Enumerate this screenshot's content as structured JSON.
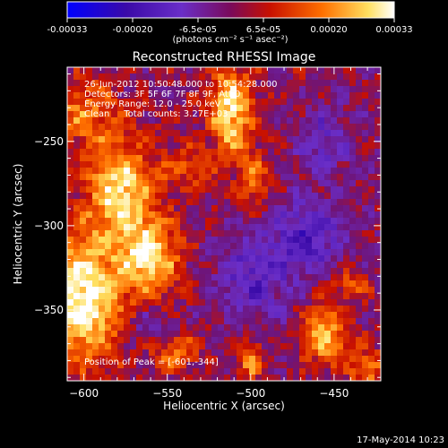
{
  "colorbar": {
    "tick_labels": [
      "-0.00033",
      "-0.00020",
      "-6.5e-05",
      "6.5e-05",
      "0.00020",
      "0.00033"
    ],
    "unit_label": "(photons cm⁻² s⁻¹ asec⁻²)",
    "colors": [
      "#0000ff",
      "#3a0aa8",
      "#6a2ec8",
      "#7a0a5a",
      "#c81000",
      "#ff7000",
      "#ffe060",
      "#ffffff"
    ]
  },
  "info": {
    "time_range": "26-Jun-2012 10:50:48.000 to 10:54:28.000",
    "detectors": "Detectors: 3F 5F 6F 7F 8F 9F, Att 0",
    "energy_range": "Energy Range: 12.0 - 25.0 keV",
    "clean_counts": "Clean     Total counts: 3.27E+03",
    "peak": "Position of Peak = [-601,-344]"
  },
  "footer": {
    "timestamp": "17-May-2014 10:23"
  },
  "chart_data": {
    "type": "heatmap",
    "title": "Reconstructed RHESSI Image",
    "xlabel": "Heliocentric X (arcsec)",
    "ylabel": "Heliocentric Y (arcsec)",
    "xlim": [
      -610,
      -422
    ],
    "ylim": [
      -392,
      -206
    ],
    "x_ticks": [
      -600,
      -550,
      -500,
      -450
    ],
    "x_tick_labels": [
      "−600",
      "−550",
      "−500",
      "−450"
    ],
    "y_ticks": [
      -250,
      -300,
      -350
    ],
    "y_tick_labels": [
      "−250",
      "−300",
      "−350"
    ],
    "color_range": [
      -0.00033,
      0.00033
    ],
    "peak_position": [
      -601,
      -344
    ],
    "sources": [
      {
        "x": -601,
        "y": -344,
        "sx": 16,
        "sy": 26,
        "amp": 1.0
      },
      {
        "x": -578,
        "y": -280,
        "sx": 14,
        "sy": 22,
        "amp": 0.85
      },
      {
        "x": -560,
        "y": -320,
        "sx": 12,
        "sy": 16,
        "amp": 0.8
      },
      {
        "x": -512,
        "y": -232,
        "sx": 9,
        "sy": 20,
        "amp": 0.85
      },
      {
        "x": -498,
        "y": -272,
        "sx": 6,
        "sy": 12,
        "amp": 0.45
      },
      {
        "x": -600,
        "y": -232,
        "sx": 14,
        "sy": 14,
        "amp": 0.5
      },
      {
        "x": -538,
        "y": -265,
        "sx": 10,
        "sy": 10,
        "amp": 0.35
      },
      {
        "x": -545,
        "y": -375,
        "sx": 10,
        "sy": 8,
        "amp": 0.45
      },
      {
        "x": -500,
        "y": -380,
        "sx": 5,
        "sy": 8,
        "amp": 0.6
      },
      {
        "x": -455,
        "y": -365,
        "sx": 10,
        "sy": 12,
        "amp": 0.7
      },
      {
        "x": -430,
        "y": -385,
        "sx": 8,
        "sy": 8,
        "amp": 0.5
      },
      {
        "x": -440,
        "y": -335,
        "sx": 7,
        "sy": 6,
        "amp": 0.4
      },
      {
        "x": -465,
        "y": -305,
        "sx": 14,
        "sy": 14,
        "amp": -0.55
      },
      {
        "x": -498,
        "y": -330,
        "sx": 16,
        "sy": 18,
        "amp": -0.45
      },
      {
        "x": -455,
        "y": -250,
        "sx": 12,
        "sy": 14,
        "amp": -0.35
      },
      {
        "x": -560,
        "y": -360,
        "sx": 10,
        "sy": 8,
        "amp": -0.3
      }
    ]
  }
}
